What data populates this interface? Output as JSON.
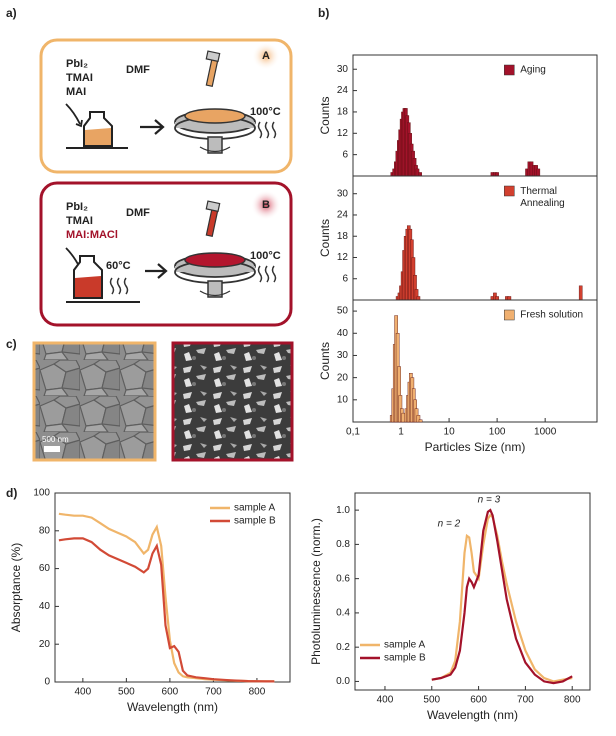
{
  "labels": {
    "a": "a)",
    "b": "b)",
    "c": "c)",
    "d": "d)"
  },
  "schematic": {
    "box_a": {
      "reagents": [
        "PbI₂",
        "TMAI",
        "MAI"
      ],
      "solvent": "DMF",
      "tag": "A",
      "temperature": "100°C"
    },
    "box_b": {
      "reagents": [
        "PbI₂",
        "TMAI"
      ],
      "highlight": "MAI:MACl",
      "solvent": "DMF",
      "tag": "B",
      "bottle_temperature": "60°C",
      "temperature": "100°C"
    },
    "scale_bar": "500 nm"
  },
  "chart_data": [
    {
      "type": "bar",
      "ylabel": "Counts",
      "log_x": true,
      "xlim": [
        0.1,
        12000
      ],
      "ylim": [
        0,
        34
      ],
      "yticks": [
        6,
        12,
        18,
        24,
        30
      ],
      "legend": "upper right",
      "x": [
        0.66,
        0.72,
        0.78,
        0.84,
        0.9,
        0.96,
        1.03,
        1.1,
        1.18,
        1.26,
        1.35,
        1.45,
        1.55,
        1.66,
        1.78,
        1.91,
        2.05,
        2.2,
        2.5,
        80,
        90,
        100,
        420,
        470,
        520,
        580,
        650,
        720
      ],
      "series": [
        {
          "name": "Aging",
          "color": "#a3122a",
          "values": [
            1,
            2,
            4,
            7,
            10,
            13,
            16,
            18,
            19,
            19,
            17,
            15,
            12,
            9,
            7,
            5,
            3,
            2,
            1,
            1,
            1,
            1,
            2,
            4,
            4,
            3,
            3,
            2
          ]
        }
      ]
    },
    {
      "type": "bar",
      "ylabel": "Counts",
      "log_x": true,
      "xlim": [
        0.1,
        12000
      ],
      "ylim": [
        0,
        35
      ],
      "yticks": [
        6,
        12,
        18,
        24,
        30
      ],
      "legend": "upper right",
      "x": [
        0.85,
        0.93,
        1.0,
        1.08,
        1.16,
        1.25,
        1.35,
        1.45,
        1.56,
        1.68,
        1.81,
        1.95,
        2.1,
        2.3,
        80,
        90,
        100,
        160,
        180,
        5500
      ],
      "series": [
        {
          "name": "Thermal Annealing",
          "color": "#d2402f",
          "values": [
            1,
            2,
            4,
            8,
            14,
            18,
            20,
            21,
            20,
            17,
            12,
            7,
            3,
            1,
            1,
            2,
            1,
            1,
            1,
            4
          ]
        }
      ]
    },
    {
      "type": "bar",
      "ylabel": "Counts",
      "xlabel": "Particles Size (nm)",
      "log_x": true,
      "xlim": [
        0.1,
        12000
      ],
      "ylim": [
        0,
        55
      ],
      "yticks": [
        10,
        20,
        30,
        40,
        50
      ],
      "legend": "upper right",
      "xticks": [
        {
          "value": 0.1,
          "label": "0,1"
        },
        1,
        10,
        100,
        1000
      ],
      "x": [
        0.64,
        0.69,
        0.74,
        0.79,
        0.85,
        0.91,
        0.97,
        1.04,
        1.12,
        1.3,
        1.4,
        1.5,
        1.6,
        1.72,
        1.84,
        1.97,
        2.1,
        2.3,
        2.55
      ],
      "series": [
        {
          "name": "Fresh solution",
          "color": "#f0b070",
          "values": [
            3,
            15,
            35,
            48,
            40,
            25,
            12,
            6,
            4,
            6,
            12,
            18,
            22,
            20,
            15,
            10,
            6,
            3,
            1
          ]
        }
      ]
    },
    {
      "type": "line",
      "xlabel": "Wavelength (nm)",
      "ylabel": "Absorptance (%)",
      "xlim": [
        336,
        876
      ],
      "ylim": [
        0,
        100
      ],
      "xticks": [
        400,
        500,
        600,
        700,
        800
      ],
      "yticks": [
        0,
        20,
        40,
        60,
        80,
        100
      ],
      "legend": "upper right",
      "x": [
        345,
        360,
        380,
        400,
        420,
        440,
        460,
        480,
        500,
        520,
        540,
        550,
        560,
        570,
        580,
        590,
        600,
        610,
        620,
        630,
        640,
        660,
        680,
        700,
        740,
        780,
        820,
        840
      ],
      "series": [
        {
          "name": "sample A",
          "color": "#f0b56a",
          "values": [
            89,
            88.5,
            88,
            88,
            87,
            84,
            81,
            79,
            77,
            74,
            68,
            70,
            78,
            82,
            72,
            45,
            22,
            10,
            5,
            3,
            2.5,
            2,
            1.5,
            1.2,
            0.8,
            0.5,
            0.3,
            0.3
          ]
        },
        {
          "name": "sample B",
          "color": "#d24a36",
          "values": [
            75,
            75.5,
            76,
            76,
            74,
            70,
            67,
            65,
            63,
            61,
            58,
            60,
            68,
            72,
            62,
            30,
            18,
            19,
            16,
            6,
            3.5,
            2.5,
            2,
            1.5,
            0.9,
            0.5,
            0.3,
            0.3
          ]
        }
      ]
    },
    {
      "type": "line",
      "xlabel": "Wavelength (nm)",
      "ylabel": "Photoluminescence (norm.)",
      "xlim": [
        336,
        838
      ],
      "ylim": [
        -0.05,
        1.1
      ],
      "xticks": [
        400,
        500,
        600,
        700,
        800
      ],
      "yticks": [
        {
          "value": 0,
          "label": "0.0"
        },
        0.2,
        0.4,
        0.6,
        0.8,
        {
          "value": 1,
          "label": "1.0"
        }
      ],
      "legend": "lower left",
      "annotations": [
        "n = 2",
        "n = 3"
      ],
      "x": [
        500,
        520,
        540,
        550,
        560,
        570,
        575,
        580,
        585,
        590,
        600,
        610,
        620,
        625,
        630,
        640,
        650,
        660,
        680,
        700,
        720,
        740,
        760,
        780,
        800
      ],
      "series": [
        {
          "name": "sample A",
          "color": "#f0b56a",
          "values": [
            0.01,
            0.02,
            0.05,
            0.12,
            0.35,
            0.75,
            0.85,
            0.84,
            0.75,
            0.64,
            0.6,
            0.8,
            0.95,
            0.97,
            0.96,
            0.85,
            0.7,
            0.57,
            0.35,
            0.18,
            0.07,
            0.02,
            0,
            0.01,
            0.02
          ]
        },
        {
          "name": "sample B",
          "color": "#a3122a",
          "values": [
            0.01,
            0.02,
            0.04,
            0.08,
            0.18,
            0.4,
            0.55,
            0.6,
            0.58,
            0.55,
            0.62,
            0.88,
            0.99,
            1,
            0.97,
            0.82,
            0.65,
            0.48,
            0.25,
            0.11,
            0.04,
            0,
            -0.01,
            0,
            0.03
          ]
        }
      ]
    }
  ]
}
